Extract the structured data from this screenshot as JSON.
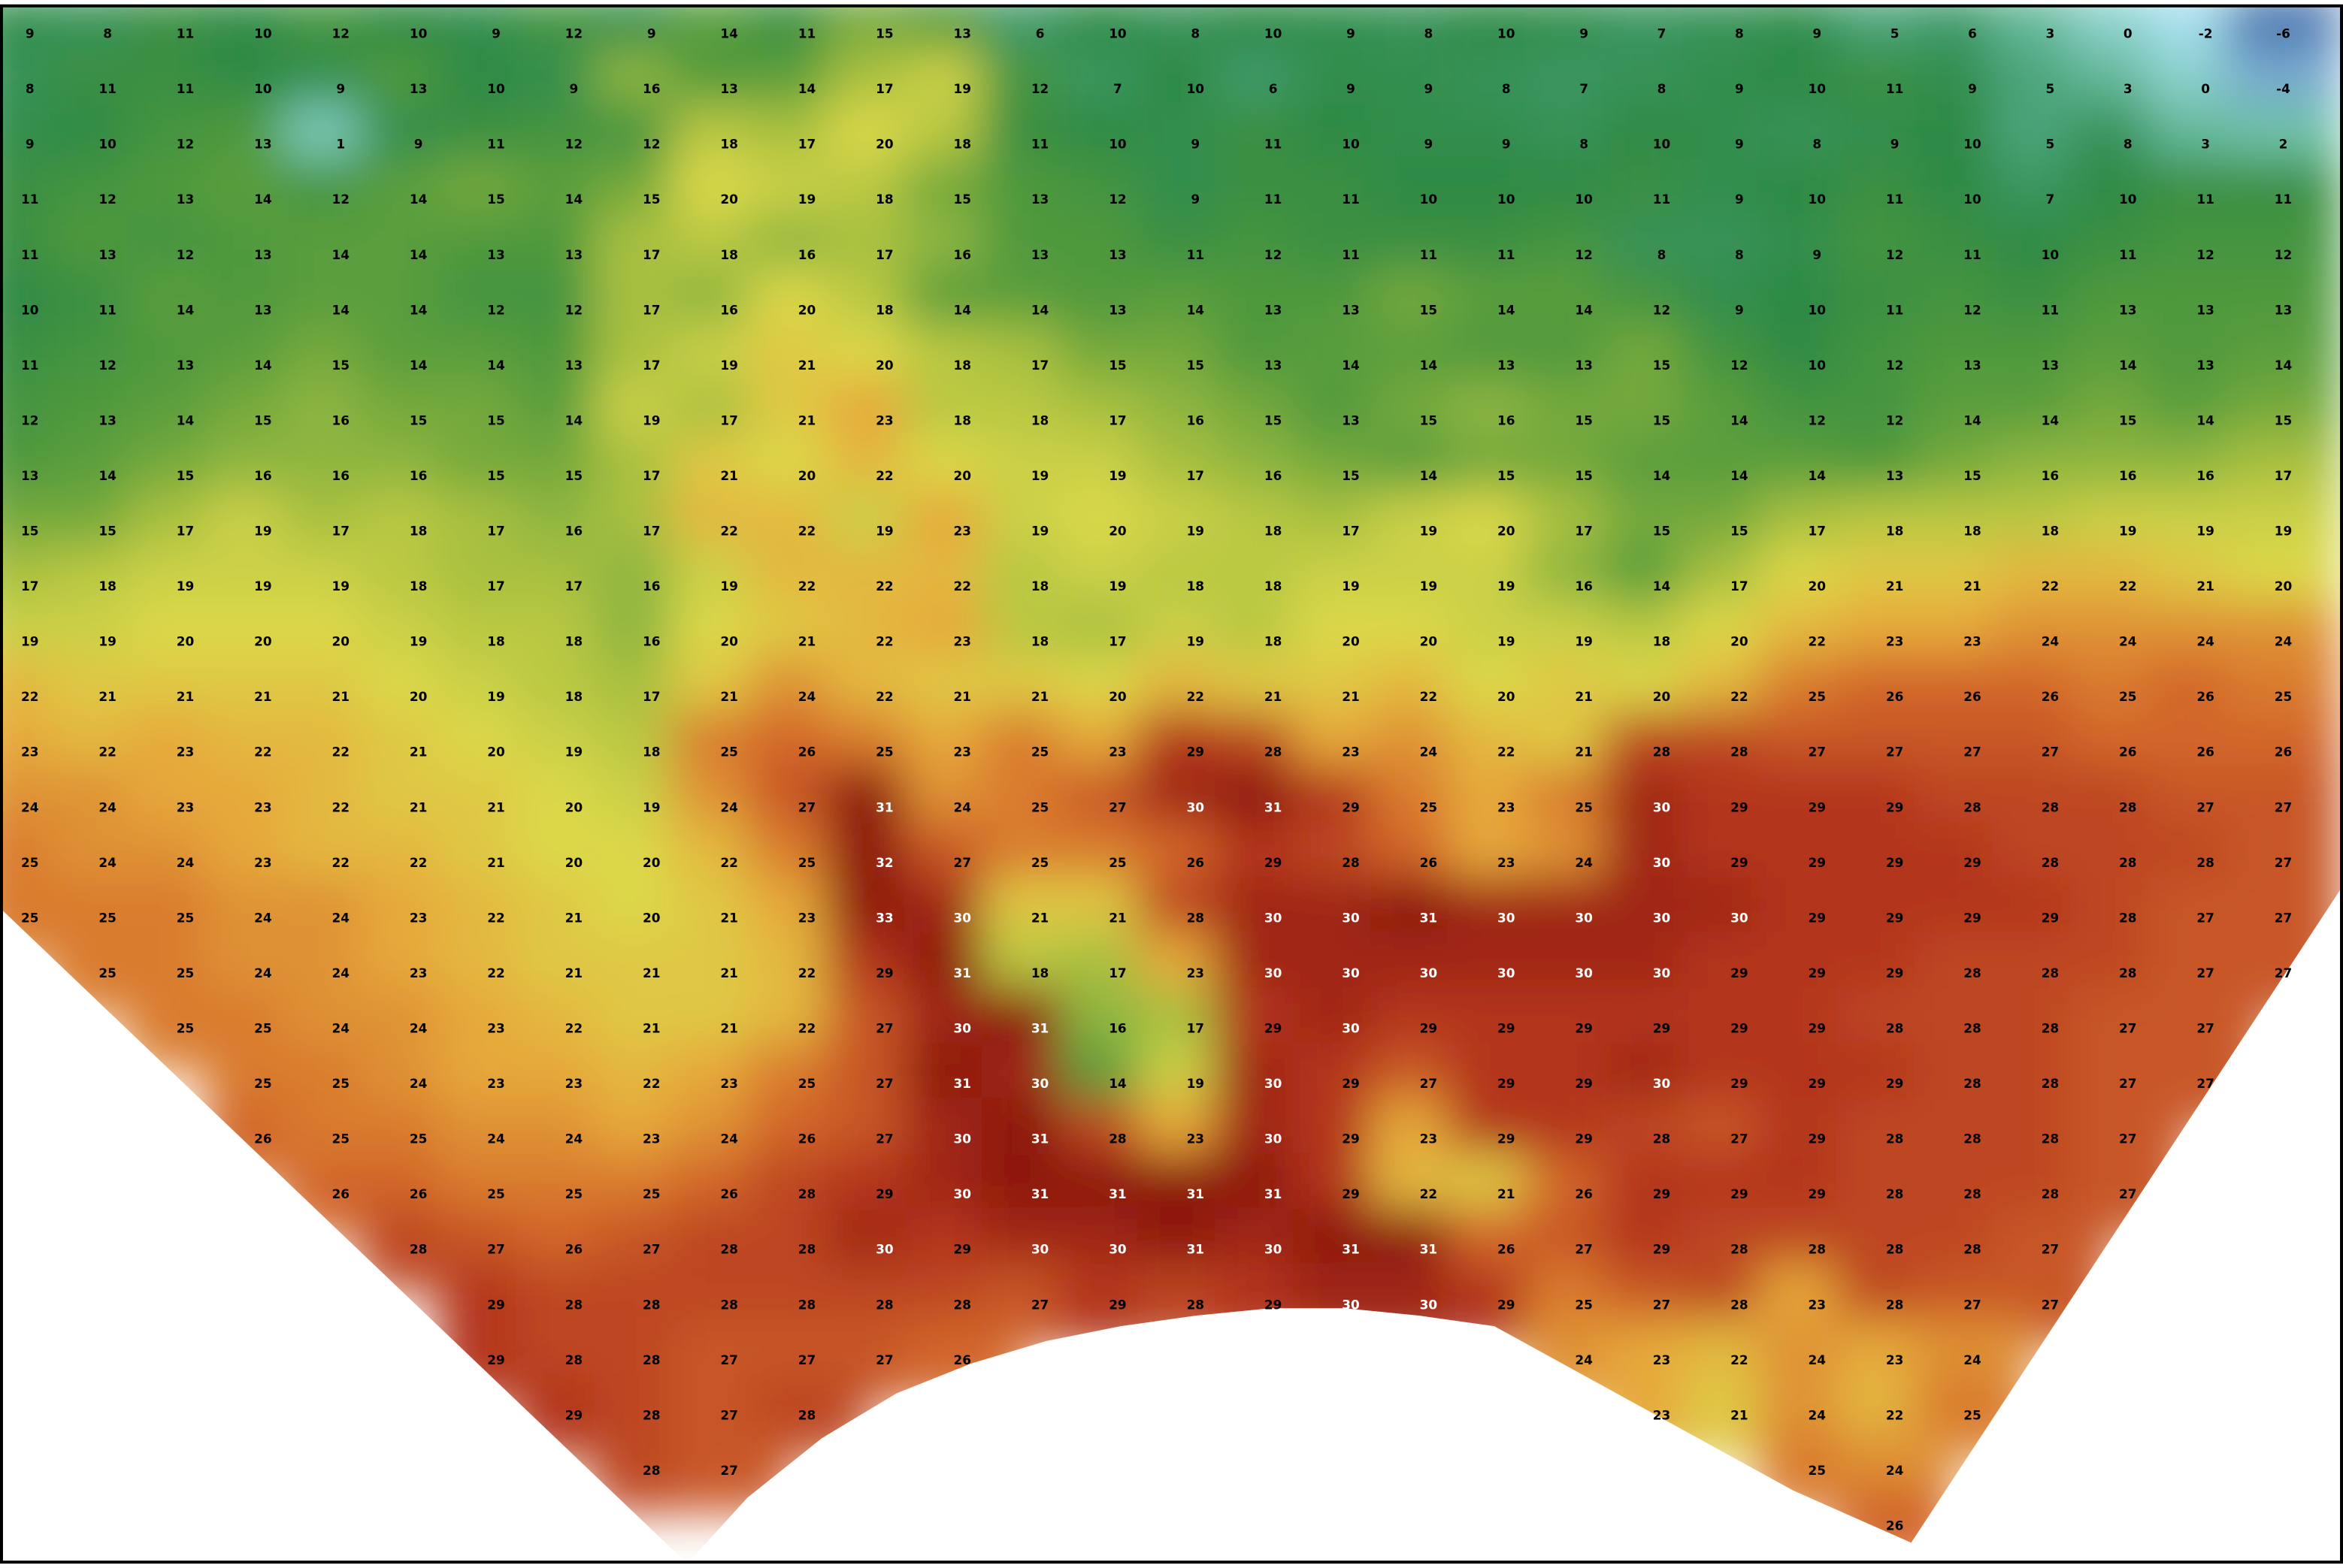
{
  "map": {
    "temperature_labels": [
      [
        9,
        8,
        11,
        10,
        12,
        10,
        9,
        12,
        9,
        14,
        11,
        15,
        13,
        6,
        10,
        8,
        10,
        9,
        8,
        10,
        9,
        7,
        8,
        9,
        5,
        6,
        3,
        0,
        -2,
        -6
      ],
      [
        8,
        11,
        11,
        10,
        9,
        13,
        10,
        9,
        16,
        13,
        14,
        17,
        19,
        12,
        7,
        10,
        6,
        9,
        9,
        8,
        7,
        8,
        9,
        10,
        11,
        9,
        5,
        3,
        0,
        -4
      ],
      [
        9,
        10,
        12,
        13,
        1,
        9,
        11,
        12,
        12,
        18,
        17,
        20,
        18,
        11,
        10,
        9,
        11,
        10,
        9,
        9,
        8,
        10,
        9,
        8,
        9,
        10,
        5,
        8,
        3,
        2
      ],
      [
        11,
        12,
        13,
        14,
        12,
        14,
        15,
        14,
        15,
        20,
        19,
        18,
        15,
        13,
        12,
        9,
        11,
        11,
        10,
        10,
        10,
        11,
        9,
        10,
        11,
        10,
        7,
        10,
        11,
        11
      ],
      [
        11,
        13,
        12,
        13,
        14,
        14,
        13,
        13,
        17,
        18,
        16,
        17,
        16,
        13,
        13,
        11,
        12,
        11,
        11,
        11,
        12,
        8,
        8,
        9,
        12,
        11,
        10,
        11,
        12,
        12
      ],
      [
        10,
        11,
        14,
        13,
        14,
        14,
        12,
        12,
        17,
        16,
        20,
        18,
        14,
        14,
        13,
        14,
        13,
        13,
        15,
        14,
        14,
        12,
        9,
        10,
        11,
        12,
        11,
        13,
        13,
        13
      ],
      [
        11,
        12,
        13,
        14,
        15,
        14,
        14,
        13,
        17,
        19,
        21,
        20,
        18,
        17,
        15,
        15,
        13,
        14,
        14,
        13,
        13,
        15,
        12,
        10,
        12,
        13,
        13,
        14,
        13,
        14
      ],
      [
        12,
        13,
        14,
        15,
        16,
        15,
        15,
        14,
        19,
        17,
        21,
        23,
        18,
        18,
        17,
        16,
        15,
        13,
        15,
        16,
        15,
        15,
        14,
        12,
        12,
        14,
        14,
        15,
        14,
        15
      ],
      [
        13,
        14,
        15,
        16,
        16,
        16,
        15,
        15,
        17,
        21,
        20,
        22,
        20,
        19,
        19,
        17,
        16,
        15,
        14,
        15,
        15,
        14,
        14,
        14,
        13,
        15,
        16,
        16,
        16,
        17
      ],
      [
        15,
        15,
        17,
        19,
        17,
        18,
        17,
        16,
        17,
        22,
        22,
        19,
        23,
        19,
        20,
        19,
        18,
        17,
        19,
        20,
        17,
        15,
        15,
        17,
        18,
        18,
        18,
        19,
        19,
        19
      ],
      [
        17,
        18,
        19,
        19,
        19,
        18,
        17,
        17,
        16,
        19,
        22,
        22,
        22,
        18,
        19,
        18,
        18,
        19,
        19,
        19,
        16,
        14,
        17,
        20,
        21,
        21,
        22,
        22,
        21,
        20
      ],
      [
        19,
        19,
        20,
        20,
        20,
        19,
        18,
        18,
        16,
        20,
        21,
        22,
        23,
        18,
        17,
        19,
        18,
        20,
        20,
        19,
        19,
        18,
        20,
        22,
        23,
        23,
        24,
        24,
        24,
        24
      ],
      [
        22,
        21,
        21,
        21,
        21,
        20,
        19,
        18,
        17,
        21,
        24,
        22,
        21,
        21,
        20,
        22,
        21,
        21,
        22,
        20,
        21,
        20,
        22,
        25,
        26,
        26,
        26,
        25,
        26,
        25
      ],
      [
        23,
        22,
        23,
        22,
        22,
        21,
        20,
        19,
        18,
        25,
        26,
        25,
        23,
        25,
        23,
        29,
        28,
        23,
        24,
        22,
        21,
        28,
        28,
        27,
        27,
        27,
        27,
        26,
        26,
        26
      ],
      [
        24,
        24,
        23,
        23,
        22,
        21,
        21,
        20,
        19,
        24,
        27,
        31,
        24,
        25,
        27,
        30,
        31,
        29,
        25,
        23,
        25,
        30,
        29,
        29,
        29,
        28,
        28,
        28,
        27,
        27
      ],
      [
        25,
        24,
        24,
        23,
        22,
        22,
        21,
        20,
        20,
        22,
        25,
        32,
        27,
        25,
        25,
        26,
        29,
        28,
        26,
        23,
        24,
        30,
        29,
        29,
        29,
        29,
        28,
        28,
        28,
        27
      ],
      [
        25,
        25,
        25,
        24,
        24,
        23,
        22,
        21,
        20,
        21,
        23,
        33,
        30,
        21,
        21,
        28,
        30,
        30,
        31,
        30,
        30,
        30,
        30,
        29,
        29,
        29,
        29,
        28,
        27,
        27
      ],
      [
        null,
        25,
        25,
        24,
        24,
        23,
        22,
        21,
        21,
        21,
        22,
        29,
        31,
        18,
        17,
        23,
        30,
        30,
        30,
        30,
        30,
        30,
        29,
        29,
        29,
        28,
        28,
        28,
        27,
        27
      ],
      [
        null,
        null,
        25,
        25,
        24,
        24,
        23,
        22,
        21,
        21,
        22,
        27,
        30,
        31,
        16,
        17,
        29,
        30,
        29,
        29,
        29,
        29,
        29,
        29,
        28,
        28,
        28,
        27,
        27,
        null
      ],
      [
        null,
        null,
        null,
        25,
        25,
        24,
        23,
        23,
        22,
        23,
        25,
        27,
        31,
        30,
        14,
        19,
        30,
        29,
        27,
        29,
        29,
        30,
        29,
        29,
        29,
        28,
        28,
        27,
        27,
        null
      ],
      [
        null,
        null,
        null,
        26,
        25,
        25,
        24,
        24,
        23,
        24,
        26,
        27,
        30,
        31,
        28,
        23,
        30,
        29,
        23,
        29,
        29,
        28,
        27,
        29,
        28,
        28,
        28,
        27,
        null,
        null
      ],
      [
        null,
        null,
        null,
        null,
        26,
        26,
        25,
        25,
        25,
        26,
        28,
        29,
        30,
        31,
        31,
        31,
        31,
        29,
        22,
        21,
        26,
        29,
        29,
        29,
        28,
        28,
        28,
        27,
        null,
        null
      ],
      [
        null,
        null,
        null,
        null,
        null,
        28,
        27,
        26,
        27,
        28,
        28,
        30,
        29,
        30,
        30,
        31,
        30,
        31,
        31,
        26,
        27,
        29,
        28,
        28,
        28,
        28,
        27,
        null,
        null,
        null
      ],
      [
        null,
        null,
        null,
        null,
        null,
        null,
        29,
        28,
        28,
        28,
        28,
        28,
        28,
        27,
        29,
        28,
        29,
        30,
        30,
        29,
        25,
        27,
        28,
        23,
        28,
        27,
        27,
        null,
        null,
        null
      ],
      [
        null,
        null,
        null,
        null,
        null,
        null,
        29,
        28,
        28,
        27,
        27,
        27,
        26,
        null,
        null,
        null,
        null,
        null,
        null,
        null,
        24,
        23,
        22,
        24,
        23,
        24,
        null,
        null,
        null,
        null
      ],
      [
        null,
        null,
        null,
        null,
        null,
        null,
        null,
        29,
        28,
        27,
        28,
        null,
        null,
        null,
        null,
        null,
        null,
        null,
        null,
        null,
        null,
        23,
        21,
        24,
        22,
        25,
        null,
        null,
        null,
        null
      ],
      [
        null,
        null,
        null,
        null,
        null,
        null,
        null,
        null,
        28,
        27,
        null,
        null,
        null,
        null,
        null,
        null,
        null,
        null,
        null,
        null,
        null,
        null,
        null,
        25,
        24,
        null,
        null,
        null,
        null,
        null
      ],
      [
        null,
        null,
        null,
        null,
        null,
        null,
        null,
        null,
        null,
        null,
        null,
        null,
        null,
        null,
        null,
        null,
        null,
        null,
        null,
        null,
        null,
        null,
        null,
        null,
        26,
        null,
        null,
        null,
        null,
        null
      ]
    ]
  }
}
